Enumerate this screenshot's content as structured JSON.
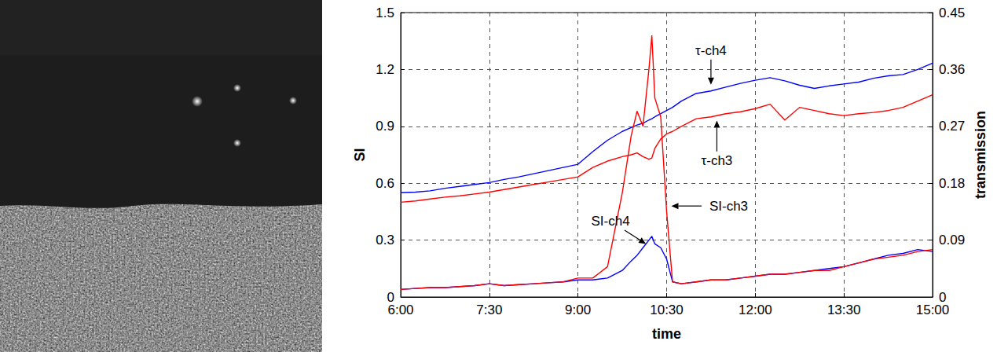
{
  "chart_data": {
    "type": "line",
    "x_label": "time",
    "y_label": "SI",
    "y2_label": "transmission",
    "grid": true,
    "xlim": [
      6,
      15
    ],
    "xticks": [
      {
        "value": 6,
        "label": "6:00"
      },
      {
        "value": 7.5,
        "label": "7:30"
      },
      {
        "value": 9,
        "label": "9:00"
      },
      {
        "value": 10.5,
        "label": "10:30"
      },
      {
        "value": 12,
        "label": "12:00"
      },
      {
        "value": 13.5,
        "label": "13:30"
      },
      {
        "value": 15,
        "label": "15:00"
      }
    ],
    "ylim": [
      0,
      1.5
    ],
    "yticks": [
      0,
      0.3,
      0.6,
      0.9,
      1.2,
      1.5
    ],
    "y2lim": [
      0,
      0.45
    ],
    "y2ticks": [
      0,
      0.09,
      0.18,
      0.27,
      0.36,
      0.45
    ],
    "x": [
      6,
      6.25,
      6.5,
      6.75,
      7,
      7.25,
      7.5,
      7.75,
      8,
      8.25,
      8.5,
      8.75,
      9,
      9.25,
      9.5,
      9.75,
      9.9,
      10,
      10.1,
      10.2,
      10.25,
      10.3,
      10.4,
      10.5,
      10.6,
      10.75,
      11,
      11.25,
      11.5,
      11.75,
      12,
      12.25,
      12.5,
      12.75,
      13,
      13.25,
      13.5,
      13.75,
      14,
      14.25,
      14.5,
      14.75,
      15
    ],
    "series": [
      {
        "name": "τ-ch4",
        "color": "#0000ff",
        "axis": "y2",
        "values": [
          0.165,
          0.166,
          0.168,
          0.172,
          0.175,
          0.178,
          0.181,
          0.186,
          0.19,
          0.195,
          0.2,
          0.205,
          0.21,
          0.23,
          0.248,
          0.262,
          0.268,
          0.272,
          0.275,
          0.28,
          0.282,
          0.285,
          0.29,
          0.295,
          0.3,
          0.31,
          0.322,
          0.326,
          0.332,
          0.338,
          0.343,
          0.347,
          0.342,
          0.335,
          0.33,
          0.334,
          0.337,
          0.34,
          0.346,
          0.35,
          0.352,
          0.36,
          0.37
        ]
      },
      {
        "name": "τ-ch3",
        "color": "#ff0000",
        "axis": "y2",
        "values": [
          0.15,
          0.152,
          0.155,
          0.158,
          0.16,
          0.163,
          0.166,
          0.17,
          0.174,
          0.178,
          0.182,
          0.186,
          0.19,
          0.205,
          0.215,
          0.222,
          0.225,
          0.228,
          0.222,
          0.218,
          0.22,
          0.235,
          0.25,
          0.258,
          0.262,
          0.27,
          0.282,
          0.285,
          0.29,
          0.293,
          0.298,
          0.305,
          0.28,
          0.3,
          0.295,
          0.29,
          0.287,
          0.29,
          0.292,
          0.295,
          0.3,
          0.31,
          0.32
        ]
      },
      {
        "name": "SI-ch4",
        "color": "#0000ff",
        "values": [
          0.04,
          0.045,
          0.05,
          0.05,
          0.055,
          0.06,
          0.07,
          0.06,
          0.065,
          0.07,
          0.075,
          0.08,
          0.09,
          0.09,
          0.1,
          0.14,
          0.19,
          0.22,
          0.26,
          0.3,
          0.32,
          0.28,
          0.26,
          0.2,
          0.08,
          0.07,
          0.08,
          0.09,
          0.09,
          0.1,
          0.11,
          0.12,
          0.12,
          0.13,
          0.14,
          0.15,
          0.16,
          0.18,
          0.2,
          0.22,
          0.23,
          0.25,
          0.24
        ]
      },
      {
        "name": "SI-ch3",
        "color": "#ff0000",
        "values": [
          0.04,
          0.045,
          0.05,
          0.05,
          0.055,
          0.06,
          0.07,
          0.06,
          0.065,
          0.07,
          0.075,
          0.08,
          0.1,
          0.1,
          0.16,
          0.55,
          0.85,
          0.98,
          0.9,
          1.2,
          1.38,
          1.05,
          0.95,
          0.45,
          0.08,
          0.07,
          0.08,
          0.09,
          0.09,
          0.1,
          0.11,
          0.12,
          0.12,
          0.13,
          0.14,
          0.14,
          0.16,
          0.18,
          0.2,
          0.21,
          0.22,
          0.24,
          0.25
        ]
      }
    ],
    "annotations": [
      {
        "text": "τ-ch4",
        "x": 11.25,
        "y": 1.3,
        "arrow_x": 11.25,
        "arrow_y": 1.12
      },
      {
        "text": "τ-ch3",
        "x": 11.35,
        "y": 0.72,
        "arrow_x": 11.35,
        "arrow_y": 0.93
      },
      {
        "text": "SI-ch4",
        "x": 9.55,
        "y": 0.4,
        "arrow_x": 10.15,
        "arrow_y": 0.28
      },
      {
        "text": "SI-ch3",
        "x": 11.55,
        "y": 0.48,
        "arrow_x": 10.58,
        "arrow_y": 0.48
      }
    ]
  }
}
